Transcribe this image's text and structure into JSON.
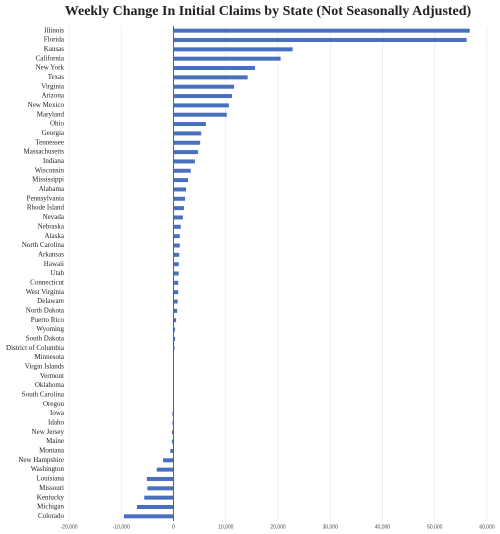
{
  "chart_data": {
    "type": "hbar",
    "title": "Weekly Change In Initial Claims by State (Not Seasonally Adjusted)",
    "categories": [
      "Illinois",
      "Florida",
      "Kansas",
      "California",
      "New York",
      "Texas",
      "Virginia",
      "Arizona",
      "New Mexico",
      "Maryland",
      "Ohio",
      "Georgia",
      "Tennessee",
      "Massachusetts",
      "Indiana",
      "Wisconsin",
      "Mississippi",
      "Alabama",
      "Pennsylvania",
      "Rhode Island",
      "Nevada",
      "Nebraska",
      "Alaska",
      "North Carolina",
      "Arkansas",
      "Hawaii",
      "Utah",
      "Connecticut",
      "West Virginia",
      "Delaware",
      "North Dakota",
      "Puerto Rico",
      "Wyoming",
      "South Dakota",
      "District of Columbia",
      "Minnesota",
      "Virgin Islands",
      "Vermont",
      "Oklahoma",
      "South Carolina",
      "Oregon",
      "Iowa",
      "Idaho",
      "New Jersey",
      "Maine",
      "Montana",
      "New Hampshire",
      "Washington",
      "Louisiana",
      "Missouri",
      "Kentucky",
      "Michigan",
      "Colorado"
    ],
    "values": [
      56700,
      56100,
      22800,
      20500,
      15600,
      14200,
      11600,
      11200,
      10600,
      10200,
      6200,
      5300,
      5100,
      4700,
      4100,
      3300,
      2800,
      2400,
      2200,
      2000,
      1800,
      1400,
      1200,
      1200,
      1100,
      1000,
      1000,
      900,
      900,
      800,
      700,
      500,
      300,
      300,
      200,
      50,
      20,
      0,
      -10,
      -50,
      -100,
      -200,
      -200,
      -300,
      -300,
      -600,
      -2000,
      -3200,
      -5100,
      -5000,
      -5600,
      -7000,
      -9500
    ],
    "color": "#4a6fc0",
    "zero_line_color": "#e8262a",
    "xlim": [
      -20000,
      60000
    ],
    "xticks": [
      {
        "value": -20000,
        "label": "-20,000"
      },
      {
        "value": -10000,
        "label": "-10,000"
      },
      0,
      {
        "value": 10000,
        "label": "10,000"
      },
      {
        "value": 20000,
        "label": "20,000"
      },
      {
        "value": 30000,
        "label": "30,000"
      },
      {
        "value": 40000,
        "label": "40,000"
      },
      {
        "value": 50000,
        "label": "50,000"
      },
      {
        "value": 60000,
        "label": "60,000"
      }
    ],
    "grid": true
  }
}
